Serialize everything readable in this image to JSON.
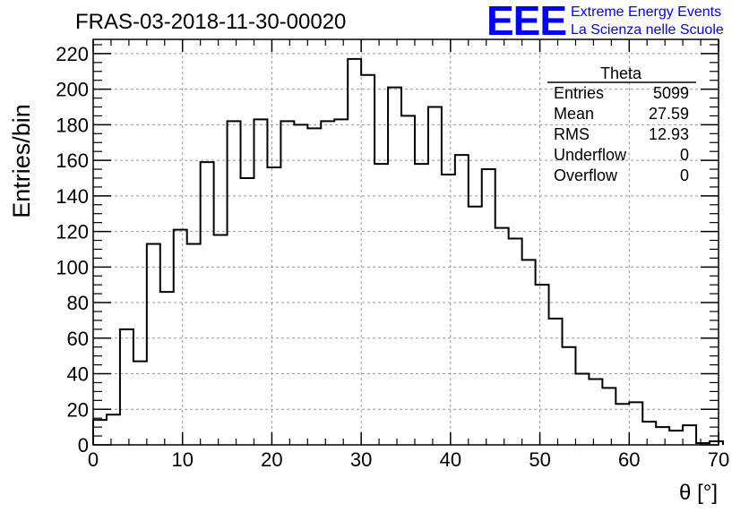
{
  "run_title": "FRAS-03-2018-11-30-00020",
  "logo": {
    "mark": "EEE",
    "line1": "Extreme Energy Events",
    "line2": "La Scienza nelle Scuole",
    "color": "#0000ff"
  },
  "stats_box": {
    "title": "Theta",
    "rows": [
      {
        "label": "Entries",
        "value": "5099"
      },
      {
        "label": "Mean",
        "value": "27.59"
      },
      {
        "label": "RMS",
        "value": "12.93"
      },
      {
        "label": "Underflow",
        "value": "0"
      },
      {
        "label": "Overflow",
        "value": "0"
      }
    ]
  },
  "chart_data": {
    "type": "bar",
    "style": "step-histogram",
    "title": "FRAS-03-2018-11-30-00020",
    "xlabel": "θ [°]",
    "ylabel": "Entries/bin",
    "xlim": [
      0,
      70
    ],
    "ylim": [
      0,
      228
    ],
    "xticks": [
      0,
      10,
      20,
      30,
      40,
      50,
      60,
      70
    ],
    "yticks": [
      0,
      20,
      40,
      60,
      80,
      100,
      120,
      140,
      160,
      180,
      200,
      220
    ],
    "grid": true,
    "bin_width": 1.5,
    "bin_edges_start": 0,
    "values": [
      14,
      17,
      65,
      47,
      113,
      86,
      121,
      113,
      159,
      118,
      182,
      150,
      183,
      156,
      182,
      180,
      178,
      182,
      183,
      217,
      208,
      158,
      201,
      185,
      158,
      190,
      152,
      163,
      134,
      155,
      122,
      116,
      104,
      90,
      71,
      55,
      40,
      37,
      32,
      23,
      24,
      13,
      10,
      8,
      11,
      1,
      2
    ],
    "line_color": "#000000"
  }
}
